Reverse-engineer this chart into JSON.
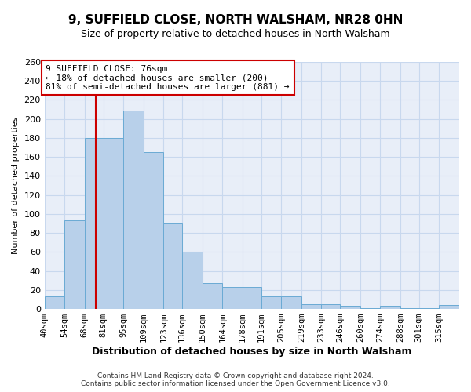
{
  "title": "9, SUFFIELD CLOSE, NORTH WALSHAM, NR28 0HN",
  "subtitle": "Size of property relative to detached houses in North Walsham",
  "xlabel": "Distribution of detached houses by size in North Walsham",
  "ylabel": "Number of detached properties",
  "footer1": "Contains HM Land Registry data © Crown copyright and database right 2024.",
  "footer2": "Contains public sector information licensed under the Open Government Licence v3.0.",
  "bin_labels": [
    "40sqm",
    "54sqm",
    "68sqm",
    "81sqm",
    "95sqm",
    "109sqm",
    "123sqm",
    "136sqm",
    "150sqm",
    "164sqm",
    "178sqm",
    "191sqm",
    "205sqm",
    "219sqm",
    "233sqm",
    "246sqm",
    "260sqm",
    "274sqm",
    "288sqm",
    "301sqm",
    "315sqm"
  ],
  "bin_edges": [
    40,
    54,
    68,
    81,
    95,
    109,
    123,
    136,
    150,
    164,
    178,
    191,
    205,
    219,
    233,
    246,
    260,
    274,
    288,
    301,
    315
  ],
  "bar_heights": [
    13,
    93,
    180,
    180,
    209,
    165,
    90,
    60,
    27,
    23,
    23,
    13,
    13,
    5,
    5,
    3,
    1,
    3,
    1,
    1,
    4
  ],
  "bar_color": "#b8d0ea",
  "bar_edge_color": "#6aaad4",
  "grid_color": "#c8d8ee",
  "property_line_x": 76,
  "property_line_color": "#cc0000",
  "annotation_title": "9 SUFFIELD CLOSE: 76sqm",
  "annotation_line1": "← 18% of detached houses are smaller (200)",
  "annotation_line2": "81% of semi-detached houses are larger (881) →",
  "annotation_box_color": "#cc0000",
  "ylim": [
    0,
    260
  ],
  "yticks": [
    0,
    20,
    40,
    60,
    80,
    100,
    120,
    140,
    160,
    180,
    200,
    220,
    240,
    260
  ],
  "background_color": "#ffffff",
  "plot_background_color": "#e8eef8",
  "title_fontsize": 11,
  "subtitle_fontsize": 9,
  "xlabel_fontsize": 9,
  "ylabel_fontsize": 8,
  "tick_fontsize": 8,
  "xtick_fontsize": 7.5,
  "footer_fontsize": 6.5,
  "ann_fontsize": 8
}
